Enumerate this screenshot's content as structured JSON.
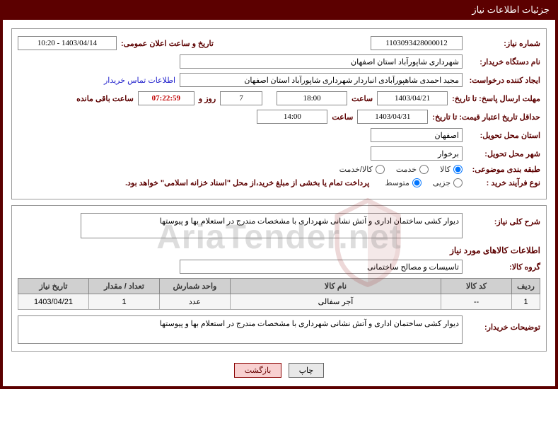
{
  "header": {
    "title": "جزئیات اطلاعات نیاز"
  },
  "fields": {
    "need_number_label": "شماره نیاز:",
    "need_number": "1103093428000012",
    "announce_label": "تاریخ و ساعت اعلان عمومی:",
    "announce_value": "1403/04/14 - 10:20",
    "buyer_org_label": "نام دستگاه خریدار:",
    "buyer_org": "شهرداری شاپورآباد استان اصفهان",
    "requester_label": "ایجاد کننده درخواست:",
    "requester": "مجید احمدی شاهپورآبادی انباردار شهرداری شاپورآباد استان اصفهان",
    "contact_link": "اطلاعات تماس خریدار",
    "deadline_label": "مهلت ارسال پاسخ: تا تاریخ:",
    "deadline_date": "1403/04/21",
    "time_label": "ساعت",
    "deadline_time": "18:00",
    "days": "7",
    "days_label": "روز و",
    "remaining_time": "07:22:59",
    "remaining_label": "ساعت باقی مانده",
    "validity_label": "حداقل تاریخ اعتبار قیمت: تا تاریخ:",
    "validity_date": "1403/04/31",
    "validity_time": "14:00",
    "province_label": "استان محل تحویل:",
    "province": "اصفهان",
    "city_label": "شهر محل تحویل:",
    "city": "برخوار",
    "category_label": "طبقه بندی موضوعی:",
    "cat_goods": "کالا",
    "cat_service": "خدمت",
    "cat_both": "کالا/خدمت",
    "process_label": "نوع فرآیند خرید :",
    "proc_small": "جزیی",
    "proc_medium": "متوسط",
    "payment_note": "پرداخت تمام یا بخشی از مبلغ خرید،از محل \"اسناد خزانه اسلامی\" خواهد بود."
  },
  "description": {
    "overall_label": "شرح کلی نیاز:",
    "overall_text": "دیوار کشی ساختمان اداری و آتش نشانی شهرداری با مشخصات مندرج در استعلام بها و پیوستها",
    "items_title": "اطلاعات کالاهای مورد نیاز",
    "group_label": "گروه کالا:",
    "group_value": "تاسیسات و مصالح ساختمانی"
  },
  "table": {
    "headers": {
      "row": "ردیف",
      "code": "کد کالا",
      "name": "نام کالا",
      "unit": "واحد شمارش",
      "qty": "تعداد / مقدار",
      "date": "تاریخ نیاز"
    },
    "rows": [
      {
        "row": "1",
        "code": "--",
        "name": "آجر سفالی",
        "unit": "عدد",
        "qty": "1",
        "date": "1403/04/21"
      }
    ]
  },
  "buyer_desc": {
    "label": "توضیحات خریدار:",
    "text": "دیوار کشی ساختمان اداری و آتش نشانی شهرداری با مشخصات مندرج در استعلام بها و پیوستها"
  },
  "buttons": {
    "print": "چاپ",
    "back": "بازگشت"
  },
  "watermark": "AriaTender.net",
  "colors": {
    "primary": "#5c0000",
    "border": "#888888",
    "th_bg": "#d0d0d0"
  }
}
